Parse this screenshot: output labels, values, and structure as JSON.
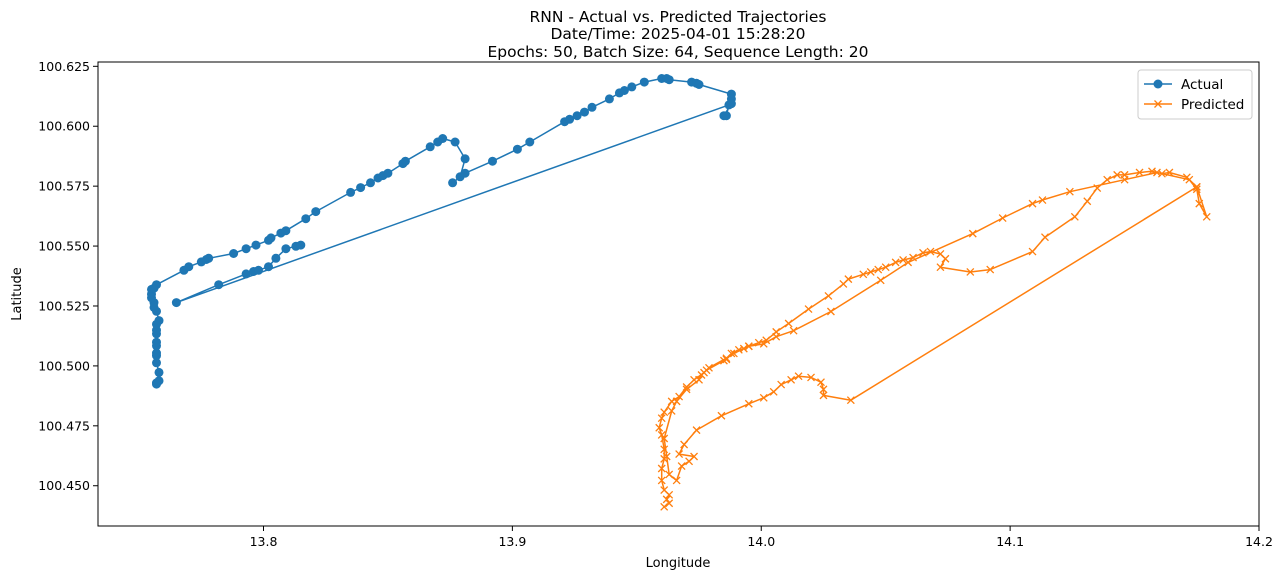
{
  "chart_data": {
    "type": "line",
    "title_lines": [
      "RNN - Actual vs. Predicted Trajectories",
      "Date/Time: 2025-04-01 15:28:20",
      "Epochs: 50, Batch Size: 64, Sequence Length: 20"
    ],
    "xlabel": "Longitude",
    "ylabel": "Latitude",
    "xlim": [
      13.7335,
      14.2
    ],
    "ylim": [
      100.4332,
      100.6268
    ],
    "x_ticks": [
      13.8,
      13.9,
      14.0,
      14.1,
      14.2
    ],
    "x_tick_labels": [
      "13.8",
      "13.9",
      "14.0",
      "14.1",
      "14.2"
    ],
    "y_ticks": [
      100.45,
      100.475,
      100.5,
      100.525,
      100.55,
      100.575,
      100.6,
      100.625
    ],
    "y_tick_labels": [
      "100.450",
      "100.475",
      "100.500",
      "100.525",
      "100.550",
      "100.575",
      "100.600",
      "100.625"
    ],
    "grid": false,
    "legend_position": "top-right",
    "series": [
      {
        "name": "Actual",
        "color": "#1f77b4",
        "marker": "circle",
        "points": [
          [
            13.757,
            100.4924
          ],
          [
            13.757,
            100.4929
          ],
          [
            13.758,
            100.4938
          ],
          [
            13.758,
            100.4973
          ],
          [
            13.757,
            100.5013
          ],
          [
            13.757,
            100.5043
          ],
          [
            13.757,
            100.5054
          ],
          [
            13.757,
            100.5084
          ],
          [
            13.757,
            100.5099
          ],
          [
            13.757,
            100.5134
          ],
          [
            13.757,
            100.5149
          ],
          [
            13.757,
            100.5174
          ],
          [
            13.758,
            100.5189
          ],
          [
            13.757,
            100.5228
          ],
          [
            13.756,
            100.5244
          ],
          [
            13.756,
            100.5264
          ],
          [
            13.755,
            100.5284
          ],
          [
            13.755,
            100.5299
          ],
          [
            13.755,
            100.5319
          ],
          [
            13.756,
            100.5324
          ],
          [
            13.757,
            100.5339
          ],
          [
            13.768,
            100.5399
          ],
          [
            13.77,
            100.5414
          ],
          [
            13.775,
            100.5434
          ],
          [
            13.777,
            100.5444
          ],
          [
            13.778,
            100.5449
          ],
          [
            13.788,
            100.5469
          ],
          [
            13.793,
            100.5489
          ],
          [
            13.797,
            100.5504
          ],
          [
            13.802,
            100.5524
          ],
          [
            13.803,
            100.5534
          ],
          [
            13.807,
            100.5554
          ],
          [
            13.809,
            100.5564
          ],
          [
            13.817,
            100.5614
          ],
          [
            13.821,
            100.5644
          ],
          [
            13.835,
            100.5724
          ],
          [
            13.839,
            100.5744
          ],
          [
            13.843,
            100.5764
          ],
          [
            13.846,
            100.5784
          ],
          [
            13.848,
            100.5794
          ],
          [
            13.85,
            100.5804
          ],
          [
            13.856,
            100.5844
          ],
          [
            13.857,
            100.5854
          ],
          [
            13.867,
            100.5914
          ],
          [
            13.87,
            100.5934
          ],
          [
            13.872,
            100.5949
          ],
          [
            13.877,
            100.5934
          ],
          [
            13.881,
            100.5864
          ],
          [
            13.879,
            100.5789
          ],
          [
            13.876,
            100.5764
          ],
          [
            13.881,
            100.5804
          ],
          [
            13.892,
            100.5854
          ],
          [
            13.902,
            100.5904
          ],
          [
            13.907,
            100.5934
          ],
          [
            13.921,
            100.6019
          ],
          [
            13.923,
            100.6029
          ],
          [
            13.926,
            100.6044
          ],
          [
            13.929,
            100.6059
          ],
          [
            13.932,
            100.6079
          ],
          [
            13.939,
            100.6114
          ],
          [
            13.943,
            100.6139
          ],
          [
            13.945,
            100.6149
          ],
          [
            13.948,
            100.6164
          ],
          [
            13.953,
            100.6184
          ],
          [
            13.96,
            100.6199
          ],
          [
            13.962,
            100.6199
          ],
          [
            13.963,
            100.6194
          ],
          [
            13.972,
            100.6184
          ],
          [
            13.974,
            100.6179
          ],
          [
            13.975,
            100.6174
          ],
          [
            13.988,
            100.6134
          ],
          [
            13.988,
            100.6114
          ],
          [
            13.988,
            100.6094
          ],
          [
            13.985,
            100.6044
          ],
          [
            13.986,
            100.6044
          ],
          [
            13.987,
            100.6089
          ],
          [
            13.765,
            100.5264
          ],
          [
            13.782,
            100.5339
          ],
          [
            13.793,
            100.5384
          ],
          [
            13.796,
            100.5394
          ],
          [
            13.798,
            100.5399
          ],
          [
            13.802,
            100.5414
          ],
          [
            13.805,
            100.5449
          ],
          [
            13.809,
            100.5489
          ],
          [
            13.813,
            100.5499
          ],
          [
            13.815,
            100.5504
          ]
        ]
      },
      {
        "name": "Predicted",
        "color": "#ff7f0e",
        "marker": "x",
        "points": [
          [
            13.961,
            100.4412
          ],
          [
            13.963,
            100.4427
          ],
          [
            13.962,
            100.4443
          ],
          [
            13.963,
            100.4462
          ],
          [
            13.961,
            100.4482
          ],
          [
            13.96,
            100.4522
          ],
          [
            13.96,
            100.4572
          ],
          [
            13.961,
            100.4612
          ],
          [
            13.961,
            100.4652
          ],
          [
            13.96,
            100.4712
          ],
          [
            13.959,
            100.4742
          ],
          [
            13.96,
            100.4782
          ],
          [
            13.961,
            100.4807
          ],
          [
            13.964,
            100.4852
          ],
          [
            13.967,
            100.4872
          ],
          [
            13.97,
            100.4912
          ],
          [
            13.973,
            100.4942
          ],
          [
            13.977,
            100.4972
          ],
          [
            13.978,
            100.4982
          ],
          [
            13.985,
            100.5022
          ],
          [
            13.986,
            100.5027
          ],
          [
            13.988,
            100.5052
          ],
          [
            13.991,
            100.5067
          ],
          [
            13.993,
            100.5072
          ],
          [
            13.995,
            100.5082
          ],
          [
            13.999,
            100.5097
          ],
          [
            14.002,
            100.5107
          ],
          [
            14.006,
            100.5142
          ],
          [
            14.011,
            100.5177
          ],
          [
            14.019,
            100.5237
          ],
          [
            14.027,
            100.5292
          ],
          [
            14.033,
            100.5342
          ],
          [
            14.035,
            100.5362
          ],
          [
            14.041,
            100.5382
          ],
          [
            14.044,
            100.5392
          ],
          [
            14.047,
            100.5402
          ],
          [
            14.05,
            100.5412
          ],
          [
            14.054,
            100.5432
          ],
          [
            14.057,
            100.5442
          ],
          [
            14.061,
            100.5452
          ],
          [
            14.065,
            100.5472
          ],
          [
            14.068,
            100.5477
          ],
          [
            14.072,
            100.5467
          ],
          [
            14.074,
            100.5447
          ],
          [
            14.072,
            100.5412
          ],
          [
            14.084,
            100.5392
          ],
          [
            14.092,
            100.5402
          ],
          [
            14.109,
            100.5477
          ],
          [
            14.114,
            100.5537
          ],
          [
            14.126,
            100.5622
          ],
          [
            14.131,
            100.5687
          ],
          [
            14.135,
            100.5742
          ],
          [
            14.139,
            100.5777
          ],
          [
            14.143,
            100.5797
          ],
          [
            14.146,
            100.5797
          ],
          [
            14.152,
            100.5807
          ],
          [
            14.157,
            100.5812
          ],
          [
            14.161,
            100.5802
          ],
          [
            14.164,
            100.5807
          ],
          [
            14.171,
            100.5787
          ],
          [
            14.175,
            100.5747
          ],
          [
            14.179,
            100.5622
          ],
          [
            14.176,
            100.5677
          ],
          [
            14.175,
            100.5737
          ],
          [
            14.172,
            100.5777
          ],
          [
            14.159,
            100.5807
          ],
          [
            14.146,
            100.5777
          ],
          [
            14.124,
            100.5727
          ],
          [
            14.113,
            100.5692
          ],
          [
            14.109,
            100.5677
          ],
          [
            14.097,
            100.5617
          ],
          [
            14.085,
            100.5552
          ],
          [
            14.059,
            100.5432
          ],
          [
            14.048,
            100.5357
          ],
          [
            14.028,
            100.5227
          ],
          [
            14.013,
            100.5147
          ],
          [
            14.006,
            100.5122
          ],
          [
            14.001,
            100.5092
          ],
          [
            13.995,
            100.5082
          ],
          [
            13.989,
            100.5052
          ],
          [
            13.986,
            100.5032
          ],
          [
            13.979,
            100.4992
          ],
          [
            13.976,
            100.4962
          ],
          [
            13.975,
            100.4942
          ],
          [
            13.97,
            100.4902
          ],
          [
            13.966,
            100.4852
          ],
          [
            13.964,
            100.4812
          ],
          [
            13.961,
            100.4697
          ],
          [
            13.962,
            100.4622
          ],
          [
            13.963,
            100.4547
          ],
          [
            13.966,
            100.4522
          ],
          [
            13.968,
            100.4582
          ],
          [
            13.971,
            100.4602
          ],
          [
            13.973,
            100.4622
          ],
          [
            13.967,
            100.4632
          ],
          [
            13.969,
            100.4672
          ],
          [
            13.974,
            100.4732
          ],
          [
            13.984,
            100.4792
          ],
          [
            13.995,
            100.4842
          ],
          [
            14.001,
            100.4867
          ],
          [
            14.005,
            100.4892
          ],
          [
            14.008,
            100.4922
          ],
          [
            14.012,
            100.4942
          ],
          [
            14.015,
            100.4957
          ],
          [
            14.02,
            100.4952
          ],
          [
            14.024,
            100.4932
          ],
          [
            14.025,
            100.4902
          ],
          [
            14.025,
            100.4877
          ],
          [
            14.036,
            100.4857
          ],
          [
            14.175,
            100.5747
          ]
        ]
      }
    ]
  }
}
